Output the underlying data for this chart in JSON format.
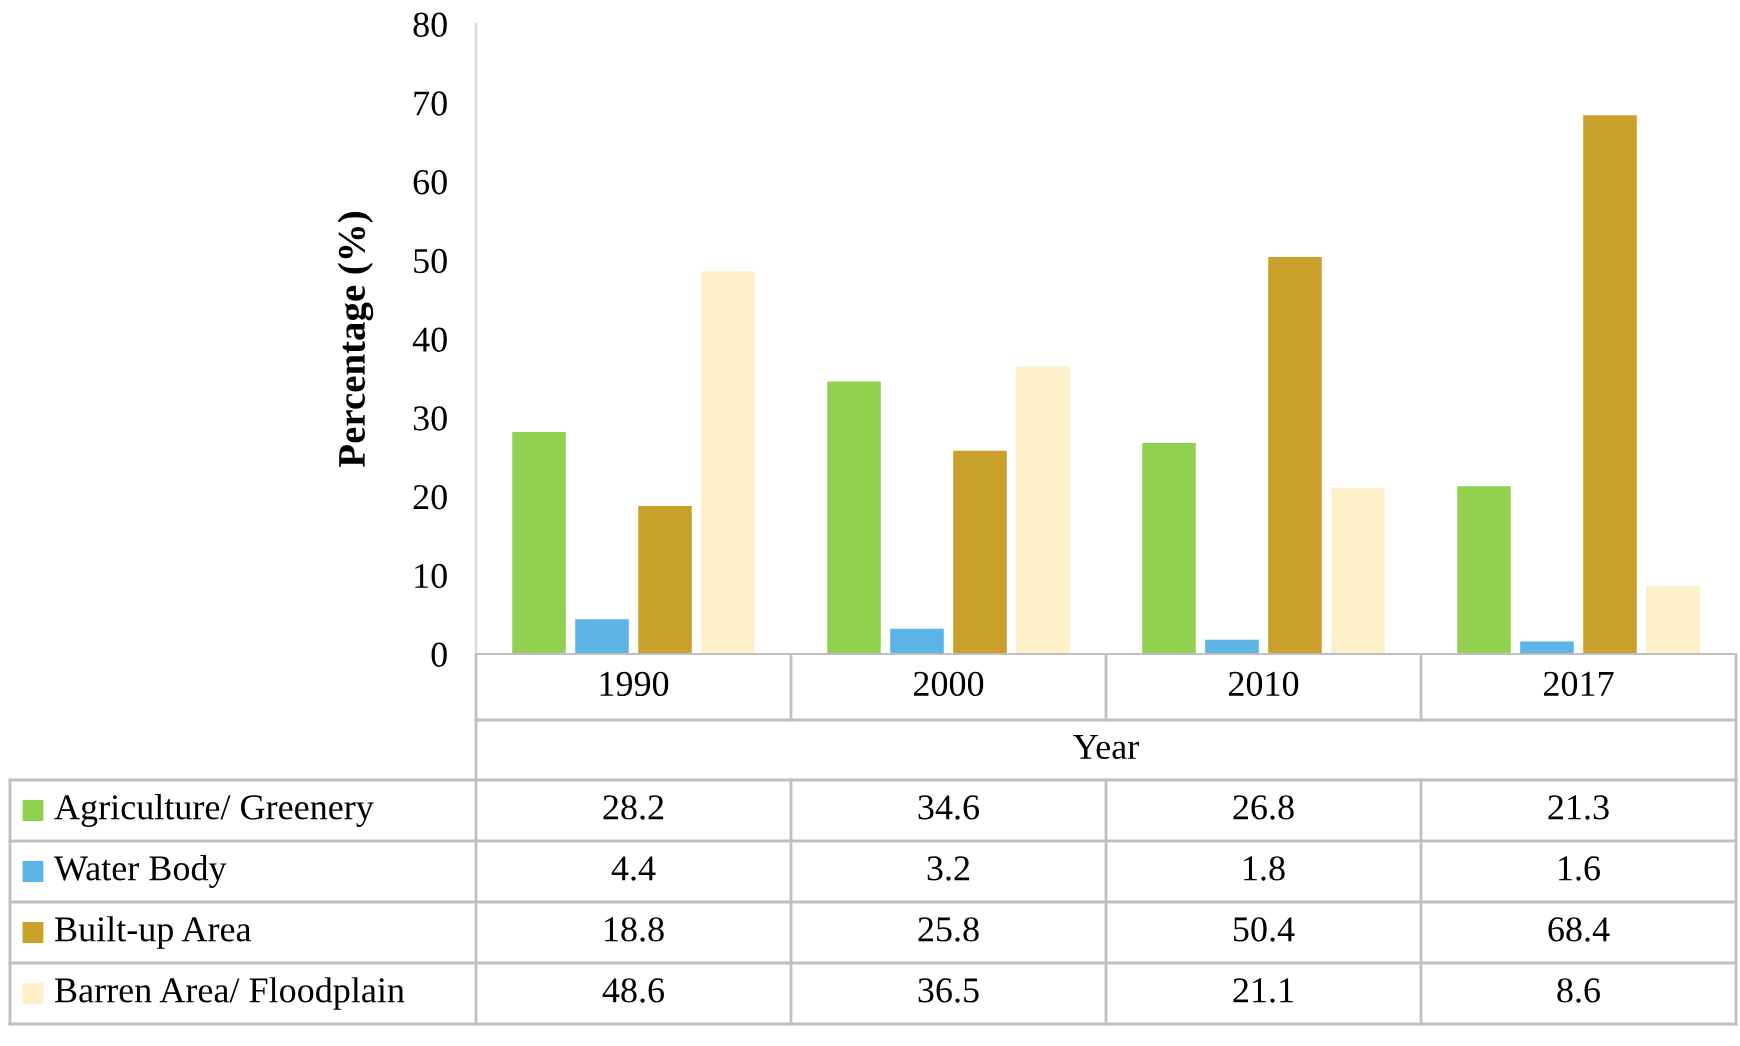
{
  "chart_data": {
    "type": "bar",
    "xlabel": "Year",
    "ylabel": "Percentage (%)",
    "categories": [
      "1990",
      "2000",
      "2010",
      "2017"
    ],
    "series": [
      {
        "name": "Agriculture/ Greenery",
        "color": "#92d050",
        "values": [
          28.2,
          34.6,
          26.8,
          21.3
        ]
      },
      {
        "name": "Water Body",
        "color": "#5bb4e5",
        "values": [
          4.4,
          3.2,
          1.8,
          1.6
        ]
      },
      {
        "name": "Built-up Area",
        "color": "#c9a02a",
        "values": [
          18.8,
          25.8,
          50.4,
          68.4
        ]
      },
      {
        "name": "Barren Area/ Floodplain",
        "color": "#fdf0c8",
        "values": [
          48.6,
          36.5,
          21.1,
          8.6
        ]
      }
    ],
    "ylim": [
      0,
      80
    ],
    "yticks": [
      0,
      10,
      20,
      30,
      40,
      50,
      60,
      70,
      80
    ],
    "grid": false,
    "data_labels": true,
    "legend": "bottom"
  }
}
